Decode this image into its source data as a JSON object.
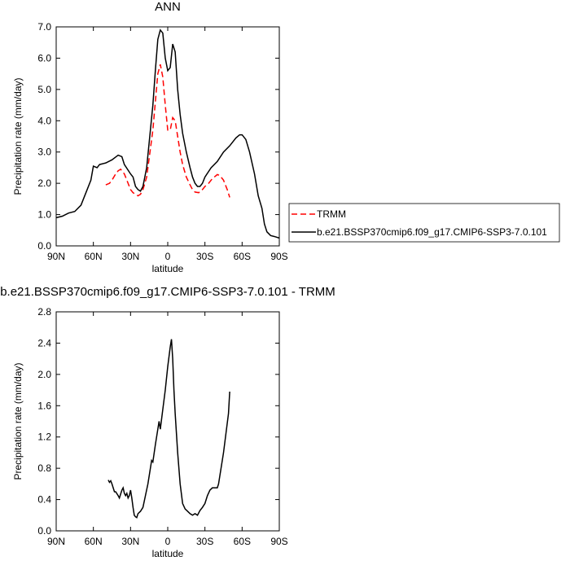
{
  "chart_data": [
    {
      "type": "line",
      "title": "ANN",
      "x_label": "latitude",
      "y_label": "Precipitation rate (mm/day)",
      "xlim": [
        90,
        -90
      ],
      "xticks": [
        {
          "value": 90,
          "label": "90N"
        },
        {
          "value": 60,
          "label": "60N"
        },
        {
          "value": 30,
          "label": "30N"
        },
        0,
        {
          "value": -30,
          "label": "30S"
        },
        {
          "value": -60,
          "label": "60S"
        },
        {
          "value": -90,
          "label": "90S"
        }
      ],
      "ylim": [
        0,
        7
      ],
      "yticks": [
        {
          "value": 0,
          "label": "0.0"
        },
        {
          "value": 1,
          "label": "1.0"
        },
        {
          "value": 2,
          "label": "2.0"
        },
        {
          "value": 3,
          "label": "3.0"
        },
        {
          "value": 4,
          "label": "4.0"
        },
        {
          "value": 5,
          "label": "5.0"
        },
        {
          "value": 6,
          "label": "6.0"
        },
        {
          "value": 7,
          "label": "7.0"
        }
      ],
      "legend": "right",
      "series": [
        {
          "name": "TRMM",
          "color": "#ff0000",
          "dashed": true,
          "x": [
            50,
            47,
            45,
            42,
            40,
            38,
            35,
            32,
            30,
            28,
            26,
            24,
            22,
            20,
            17,
            15,
            12,
            10,
            8,
            6,
            4,
            2,
            0,
            -2,
            -4,
            -6,
            -8,
            -10,
            -12,
            -15,
            -18,
            -20,
            -22,
            -25,
            -28,
            -30,
            -33,
            -36,
            -40,
            -42,
            -45,
            -48,
            -50
          ],
          "values": [
            1.95,
            2.0,
            2.1,
            2.3,
            2.4,
            2.45,
            2.3,
            2.0,
            1.8,
            1.7,
            1.65,
            1.6,
            1.65,
            1.8,
            2.2,
            2.8,
            3.7,
            4.6,
            5.5,
            5.8,
            5.4,
            4.5,
            3.7,
            3.7,
            4.1,
            4.0,
            3.5,
            3.0,
            2.6,
            2.2,
            1.95,
            1.8,
            1.72,
            1.7,
            1.8,
            1.9,
            2.0,
            2.15,
            2.28,
            2.25,
            2.1,
            1.8,
            1.55
          ]
        },
        {
          "name": "b.e21.BSSP370cmip6.f09_g17.CMIP6-SSP3-7.0.101",
          "color": "#000000",
          "dashed": false,
          "x": [
            90,
            85,
            80,
            75,
            70,
            65,
            62,
            60,
            57,
            55,
            50,
            45,
            40,
            37,
            35,
            30,
            28,
            26,
            24,
            22,
            20,
            17,
            15,
            12,
            10,
            8,
            6,
            4,
            2,
            0,
            -2,
            -4,
            -6,
            -8,
            -10,
            -12,
            -15,
            -18,
            -20,
            -22,
            -24,
            -26,
            -28,
            -30,
            -35,
            -40,
            -45,
            -50,
            -55,
            -58,
            -60,
            -63,
            -66,
            -70,
            -73,
            -76,
            -78,
            -80,
            -83,
            -86,
            -90
          ],
          "values": [
            0.9,
            0.95,
            1.05,
            1.1,
            1.3,
            1.8,
            2.1,
            2.55,
            2.5,
            2.6,
            2.65,
            2.75,
            2.9,
            2.85,
            2.6,
            2.3,
            2.2,
            1.9,
            1.8,
            1.75,
            1.9,
            2.5,
            3.3,
            4.5,
            5.6,
            6.6,
            6.9,
            6.8,
            6.0,
            5.6,
            5.7,
            6.45,
            6.2,
            5.0,
            4.2,
            3.6,
            3.0,
            2.5,
            2.2,
            2.0,
            1.9,
            1.9,
            2.0,
            2.2,
            2.5,
            2.7,
            3.0,
            3.2,
            3.45,
            3.55,
            3.55,
            3.4,
            3.0,
            2.3,
            1.6,
            1.2,
            0.7,
            0.45,
            0.33,
            0.3,
            0.25
          ]
        }
      ]
    },
    {
      "type": "line",
      "title": "b.e21.BSSP370cmip6.f09_g17.CMIP6-SSP3-7.0.101 - TRMM",
      "x_label": "latitude",
      "y_label": "Precipitation rate (mm/day)",
      "xlim": [
        90,
        -90
      ],
      "xticks": [
        {
          "value": 90,
          "label": "90N"
        },
        {
          "value": 60,
          "label": "60N"
        },
        {
          "value": 30,
          "label": "30N"
        },
        0,
        {
          "value": -30,
          "label": "30S"
        },
        {
          "value": -60,
          "label": "60S"
        },
        {
          "value": -90,
          "label": "90S"
        }
      ],
      "ylim": [
        0,
        2.8
      ],
      "yticks": [
        {
          "value": 0,
          "label": "0.0"
        },
        0.4,
        0.8,
        1.2,
        1.6,
        {
          "value": 2,
          "label": "2.0"
        },
        2.4,
        2.8
      ],
      "series": [
        {
          "color": "#000000",
          "dashed": false,
          "x": [
            48,
            47,
            46,
            45,
            43,
            42,
            40,
            39,
            37,
            36,
            35,
            34,
            33,
            32,
            31,
            30,
            29,
            28,
            27,
            26,
            25,
            24,
            22,
            20,
            18,
            16,
            14,
            13,
            12,
            10,
            8,
            7,
            6,
            4,
            2,
            0,
            -2,
            -3,
            -4,
            -5,
            -6,
            -8,
            -10,
            -12,
            -14,
            -16,
            -18,
            -20,
            -22,
            -24,
            -26,
            -28,
            -30,
            -32,
            -34,
            -36,
            -38,
            -40,
            -41,
            -43,
            -45,
            -47,
            -49,
            -50
          ],
          "values": [
            0.65,
            0.62,
            0.64,
            0.6,
            0.5,
            0.5,
            0.45,
            0.42,
            0.52,
            0.55,
            0.48,
            0.45,
            0.48,
            0.42,
            0.45,
            0.52,
            0.42,
            0.3,
            0.2,
            0.18,
            0.17,
            0.22,
            0.25,
            0.3,
            0.45,
            0.6,
            0.8,
            0.9,
            0.88,
            1.1,
            1.3,
            1.4,
            1.3,
            1.55,
            1.8,
            2.1,
            2.35,
            2.45,
            2.2,
            1.8,
            1.5,
            1.0,
            0.6,
            0.35,
            0.28,
            0.25,
            0.22,
            0.2,
            0.22,
            0.2,
            0.26,
            0.3,
            0.35,
            0.45,
            0.52,
            0.55,
            0.55,
            0.55,
            0.6,
            0.8,
            1.0,
            1.25,
            1.5,
            1.78
          ]
        }
      ]
    }
  ]
}
